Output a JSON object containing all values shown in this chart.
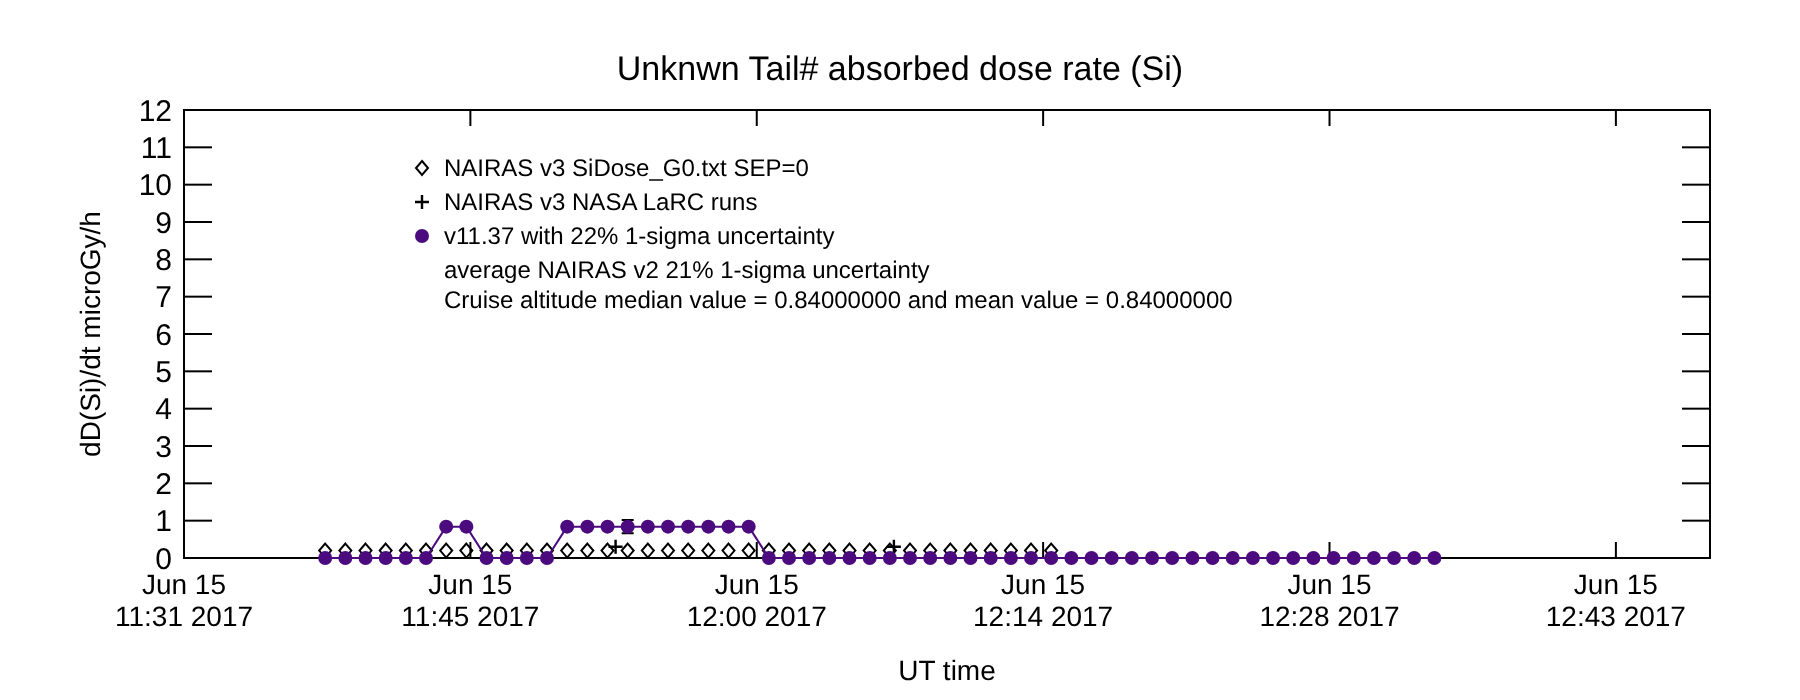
{
  "chart_data": {
    "type": "line",
    "title": "Unknwn Tail#  absorbed dose rate (Si)",
    "xlabel": "UT time",
    "ylabel": "dD(Si)/dt microGy/h",
    "xlim": [
      "2017-06-15T11:31",
      "2017-06-15T12:46:40"
    ],
    "ylim": [
      0,
      12
    ],
    "xticks": [
      {
        "value": "2017-06-15T11:31",
        "label": "Jun 15\n11:31 2017"
      },
      {
        "value": "2017-06-15T11:45:12",
        "label": "Jun 15\n11:45 2017"
      },
      {
        "value": "2017-06-15T11:59:24",
        "label": "Jun 15\n12:00 2017"
      },
      {
        "value": "2017-06-15T12:13:36",
        "label": "Jun 15\n12:14 2017"
      },
      {
        "value": "2017-06-15T12:27:48",
        "label": "Jun 15\n12:28 2017"
      },
      {
        "value": "2017-06-15T12:42",
        "label": "Jun 15\n12:43 2017"
      }
    ],
    "yticks": [
      0,
      1,
      2,
      3,
      4,
      5,
      6,
      7,
      8,
      9,
      10,
      11,
      12
    ],
    "legend": "top left",
    "annotations": [
      "average NAIRAS v2 21% 1-sigma uncertainty",
      "Cruise altitude median value = 0.84000000 and mean value = 0.84000000"
    ],
    "series": [
      {
        "name": "NAIRAS v3 SiDose_G0.txt SEP=0",
        "type": "scatter",
        "marker": "diamond",
        "color": "#000000",
        "x": [
          "2017-06-15T11:38",
          "2017-06-15T11:39",
          "2017-06-15T11:40",
          "2017-06-15T11:41",
          "2017-06-15T11:42",
          "2017-06-15T11:43",
          "2017-06-15T11:44",
          "2017-06-15T11:45",
          "2017-06-15T11:46",
          "2017-06-15T11:47",
          "2017-06-15T11:48",
          "2017-06-15T11:49",
          "2017-06-15T11:50",
          "2017-06-15T11:51",
          "2017-06-15T11:52",
          "2017-06-15T11:53",
          "2017-06-15T11:54",
          "2017-06-15T11:55",
          "2017-06-15T11:56",
          "2017-06-15T11:57",
          "2017-06-15T11:58",
          "2017-06-15T11:59",
          "2017-06-15T12:00",
          "2017-06-15T12:01",
          "2017-06-15T12:02",
          "2017-06-15T12:03",
          "2017-06-15T12:04",
          "2017-06-15T12:05",
          "2017-06-15T12:06",
          "2017-06-15T12:07",
          "2017-06-15T12:08",
          "2017-06-15T12:09",
          "2017-06-15T12:10",
          "2017-06-15T12:11",
          "2017-06-15T12:12",
          "2017-06-15T12:13",
          "2017-06-15T12:14"
        ],
        "values": [
          0.2,
          0.2,
          0.2,
          0.2,
          0.2,
          0.2,
          0.2,
          0.2,
          0.2,
          0.2,
          0.2,
          0.2,
          0.2,
          0.2,
          0.2,
          0.2,
          0.2,
          0.2,
          0.2,
          0.2,
          0.2,
          0.2,
          0.2,
          0.2,
          0.2,
          0.2,
          0.2,
          0.2,
          0.2,
          0.2,
          0.2,
          0.2,
          0.2,
          0.2,
          0.2,
          0.2,
          0.2
        ]
      },
      {
        "name": "NAIRAS v3 NASA LaRC runs",
        "type": "scatter",
        "marker": "cross",
        "color": "#000000",
        "x": [
          "2017-06-15T11:52:24",
          "2017-06-15T12:06:12"
        ],
        "values": [
          0.3,
          0.3
        ]
      },
      {
        "name": "v11.37 with 22% 1-sigma uncertainty",
        "type": "line",
        "marker": "circle",
        "color": "#4b0a7d",
        "x": [
          "2017-06-15T11:38",
          "2017-06-15T11:39",
          "2017-06-15T11:40",
          "2017-06-15T11:41",
          "2017-06-15T11:42",
          "2017-06-15T11:43",
          "2017-06-15T11:44",
          "2017-06-15T11:45",
          "2017-06-15T11:46",
          "2017-06-15T11:47",
          "2017-06-15T11:48",
          "2017-06-15T11:49",
          "2017-06-15T11:50",
          "2017-06-15T11:51",
          "2017-06-15T11:52",
          "2017-06-15T11:53",
          "2017-06-15T11:54",
          "2017-06-15T11:55",
          "2017-06-15T11:56",
          "2017-06-15T11:57",
          "2017-06-15T11:58",
          "2017-06-15T11:59",
          "2017-06-15T12:00",
          "2017-06-15T12:01",
          "2017-06-15T12:02",
          "2017-06-15T12:03",
          "2017-06-15T12:04",
          "2017-06-15T12:05",
          "2017-06-15T12:06",
          "2017-06-15T12:07",
          "2017-06-15T12:08",
          "2017-06-15T12:09",
          "2017-06-15T12:10",
          "2017-06-15T12:11",
          "2017-06-15T12:12",
          "2017-06-15T12:13",
          "2017-06-15T12:14",
          "2017-06-15T12:15",
          "2017-06-15T12:16",
          "2017-06-15T12:17",
          "2017-06-15T12:18",
          "2017-06-15T12:19",
          "2017-06-15T12:20",
          "2017-06-15T12:21",
          "2017-06-15T12:22",
          "2017-06-15T12:23",
          "2017-06-15T12:24",
          "2017-06-15T12:25",
          "2017-06-15T12:26",
          "2017-06-15T12:27",
          "2017-06-15T12:28",
          "2017-06-15T12:29",
          "2017-06-15T12:30",
          "2017-06-15T12:31",
          "2017-06-15T12:32",
          "2017-06-15T12:33"
        ],
        "values": [
          0,
          0,
          0,
          0,
          0,
          0,
          0.84,
          0.84,
          0,
          0,
          0,
          0,
          0.84,
          0.84,
          0.84,
          0.84,
          0.84,
          0.84,
          0.84,
          0.84,
          0.84,
          0.84,
          0,
          0,
          0,
          0,
          0,
          0,
          0,
          0,
          0,
          0,
          0,
          0,
          0,
          0,
          0,
          0,
          0,
          0,
          0,
          0,
          0,
          0,
          0,
          0,
          0,
          0,
          0,
          0,
          0,
          0,
          0,
          0,
          0,
          0
        ],
        "errors": [
          null,
          null,
          null,
          null,
          null,
          null,
          null,
          null,
          null,
          null,
          null,
          null,
          null,
          null,
          null,
          0.18,
          null,
          null,
          null,
          null,
          null,
          null,
          null,
          null,
          null,
          null,
          null,
          null,
          null,
          null,
          null,
          null,
          null,
          null,
          null,
          null,
          null,
          null,
          null,
          null,
          null,
          null,
          null,
          null,
          null,
          null,
          null,
          null,
          null,
          null,
          null,
          null,
          null,
          null,
          null,
          null
        ]
      }
    ]
  }
}
